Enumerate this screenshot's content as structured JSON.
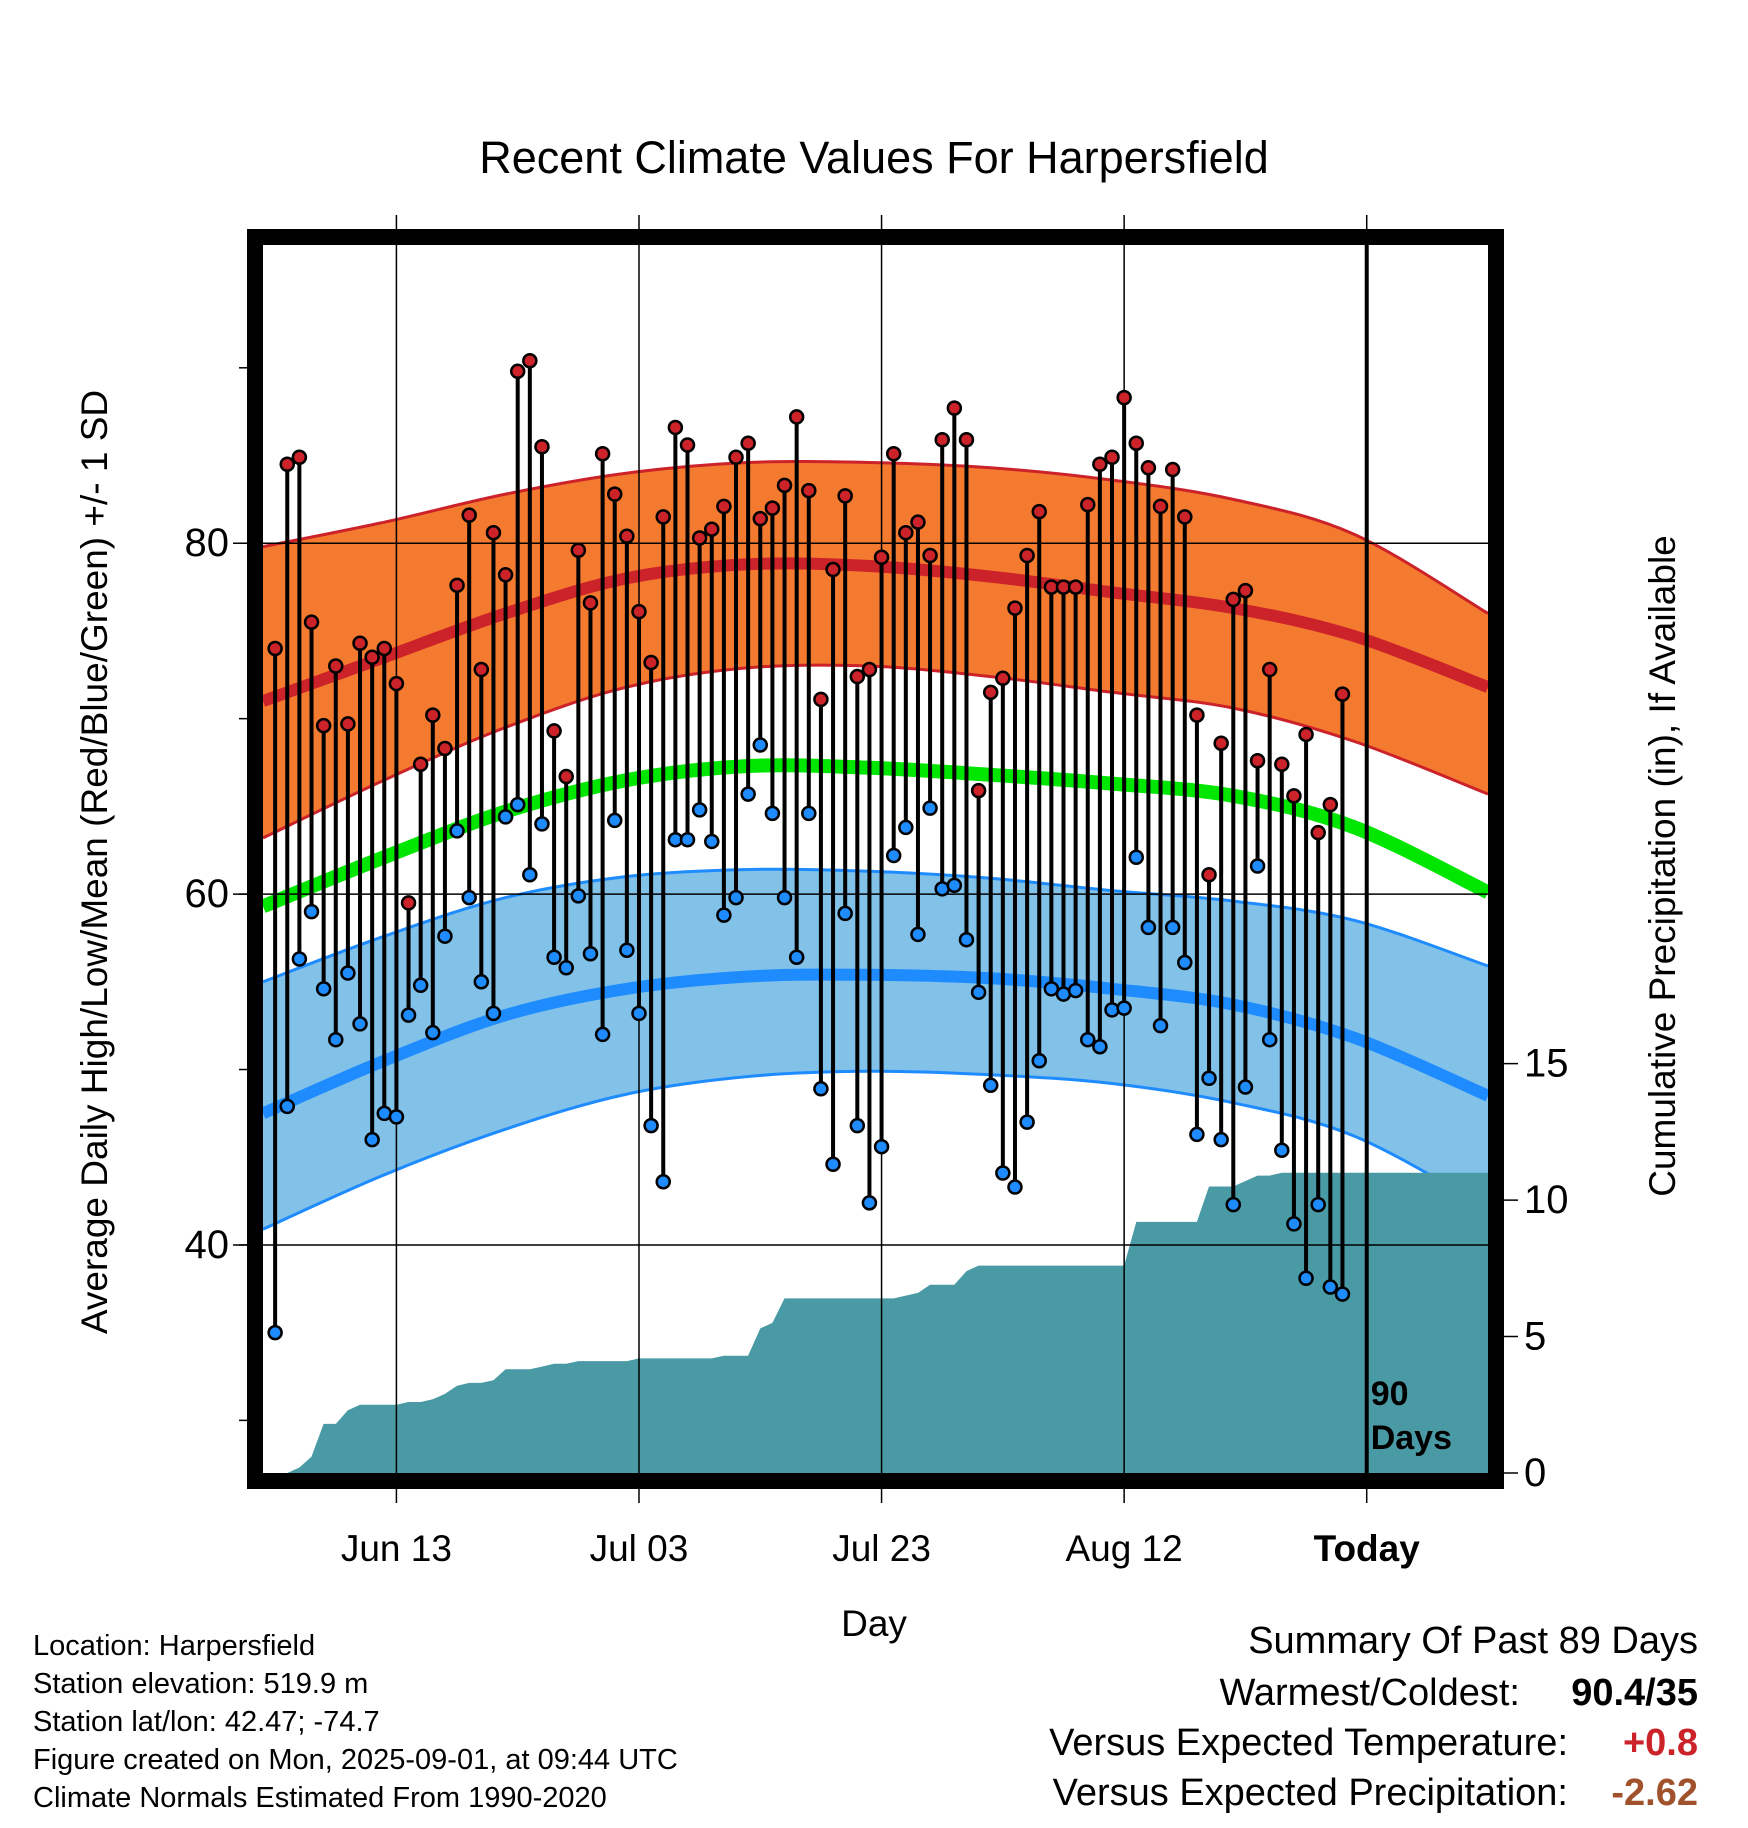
{
  "chart_data": {
    "type": "line",
    "title": "Recent Climate Values For Harpersfield",
    "xlabel": "Day",
    "ylabel": "Average Daily High/Low/Mean (Red/Blue/Green) +/- 1 SD",
    "y2label": "Cumulative Precipitation (in), If Available",
    "ylim": [
      27,
      97
    ],
    "y2lim": [
      0,
      45
    ],
    "yticks": [
      "80",
      "60",
      "40"
    ],
    "y2ticks": [
      "0",
      "5",
      "10",
      "15"
    ],
    "xticks": [
      "Jun 13",
      "Jul 03",
      "Jul 23",
      "Aug 12",
      "Today"
    ],
    "xtick_days": [
      11,
      31,
      51,
      71,
      91
    ],
    "xlim": [
      0,
      101
    ],
    "today_marker": {
      "day": 91,
      "label_line1": "90",
      "label_line2": "Days"
    },
    "grid": true,
    "colors": {
      "high_band": "#f47a30",
      "high_line": "#cc2229",
      "low_band": "#82c1e8",
      "low_line": "#1e8cff",
      "mean_line": "#00e600",
      "precip": "#4a9aa5",
      "high_point": "#cc2229",
      "low_point": "#1e8cff",
      "warm_value": "#cc2229",
      "precip_value": "#a0522d"
    },
    "normals": {
      "day": [
        0,
        10,
        20,
        30,
        40,
        50,
        60,
        70,
        80,
        90,
        101
      ],
      "high_hi": [
        79.8,
        81.2,
        82.8,
        84.0,
        84.6,
        84.6,
        84.3,
        83.6,
        82.5,
        80.5,
        76.0
      ],
      "high": [
        71.0,
        73.5,
        76.0,
        78.0,
        78.8,
        78.7,
        78.1,
        77.2,
        76.3,
        74.7,
        71.8
      ],
      "high_lo": [
        63.2,
        66.5,
        69.5,
        71.8,
        72.9,
        73.0,
        72.4,
        71.5,
        70.6,
        68.7,
        65.7
      ],
      "mean": [
        59.3,
        62.1,
        64.7,
        66.5,
        67.3,
        67.2,
        66.8,
        66.3,
        65.6,
        63.8,
        60.1
      ],
      "low_hi": [
        55.0,
        57.6,
        59.8,
        61.0,
        61.4,
        61.3,
        60.9,
        60.2,
        59.6,
        58.5,
        55.9
      ],
      "low": [
        47.5,
        50.5,
        53.1,
        54.6,
        55.3,
        55.4,
        55.2,
        54.6,
        53.7,
        51.8,
        48.5
      ],
      "low_lo": [
        40.9,
        44.0,
        46.6,
        48.6,
        49.6,
        49.9,
        49.7,
        49.2,
        48.1,
        46.2,
        42.1
      ]
    },
    "daily_high": [
      74.0,
      84.5,
      84.9,
      75.5,
      69.6,
      73.0,
      69.7,
      74.3,
      73.5,
      74.0,
      72.0,
      59.5,
      67.4,
      70.2,
      68.3,
      77.6,
      81.6,
      72.8,
      80.6,
      78.2,
      89.8,
      90.4,
      85.5,
      69.3,
      66.7,
      79.6,
      76.6,
      85.1,
      82.8,
      80.4,
      76.1,
      73.2,
      81.5,
      86.6,
      85.6,
      80.3,
      80.8,
      82.1,
      84.9,
      85.7,
      81.4,
      82.0,
      83.3,
      87.2,
      83.0,
      71.1,
      78.5,
      82.7,
      72.4,
      72.8,
      79.2,
      85.1,
      80.6,
      81.2,
      79.3,
      85.9,
      87.7,
      85.9,
      65.9,
      71.5,
      72.3,
      76.3,
      79.3,
      81.8,
      77.5,
      77.5,
      77.5,
      82.2,
      84.5,
      84.9,
      88.3,
      85.7,
      84.3,
      82.1,
      84.2,
      81.5,
      70.2,
      61.1,
      68.6,
      76.8,
      77.3,
      67.6,
      72.8,
      67.4,
      65.6,
      69.1,
      63.5,
      65.1,
      71.4
    ],
    "daily_low": [
      35.0,
      47.9,
      56.3,
      59.0,
      54.6,
      51.7,
      55.5,
      52.6,
      46.0,
      47.5,
      47.3,
      53.1,
      54.8,
      52.1,
      57.6,
      63.6,
      59.8,
      55.0,
      53.2,
      64.4,
      65.1,
      61.1,
      64.0,
      56.4,
      55.8,
      59.9,
      56.6,
      52.0,
      64.2,
      56.8,
      53.2,
      46.8,
      43.6,
      63.1,
      63.1,
      64.8,
      63.0,
      58.8,
      59.8,
      65.7,
      68.5,
      64.6,
      59.8,
      56.4,
      64.6,
      48.9,
      44.6,
      58.9,
      46.8,
      42.4,
      45.6,
      62.2,
      63.8,
      57.7,
      64.9,
      60.3,
      60.5,
      57.4,
      54.4,
      49.1,
      44.1,
      43.3,
      47.0,
      50.5,
      54.6,
      54.3,
      54.5,
      51.7,
      51.3,
      53.4,
      53.5,
      62.1,
      58.1,
      52.5,
      58.1,
      56.1,
      46.3,
      49.5,
      46.0,
      42.3,
      49.0,
      61.6,
      51.7,
      45.4,
      41.2,
      38.1,
      42.3,
      37.6,
      37.2
    ],
    "cumulative_precip": {
      "day": [
        1,
        2,
        3,
        4,
        5,
        6,
        7,
        8,
        9,
        10,
        11,
        12,
        13,
        14,
        15,
        16,
        17,
        18,
        19,
        20,
        21,
        22,
        23,
        24,
        25,
        26,
        27,
        28,
        29,
        30,
        31,
        32,
        33,
        34,
        35,
        36,
        37,
        38,
        39,
        40,
        41,
        42,
        43,
        44,
        45,
        46,
        47,
        48,
        49,
        50,
        51,
        52,
        53,
        54,
        55,
        56,
        57,
        58,
        59,
        60,
        61,
        62,
        63,
        64,
        65,
        66,
        67,
        68,
        69,
        70,
        71,
        72,
        73,
        74,
        75,
        76,
        77,
        78,
        79,
        80,
        81,
        82,
        83,
        84,
        85,
        86,
        87,
        88,
        89,
        90,
        91,
        101
      ],
      "value": [
        0.0,
        0.0,
        0.2,
        0.6,
        1.8,
        1.8,
        2.3,
        2.5,
        2.5,
        2.5,
        2.5,
        2.6,
        2.6,
        2.7,
        2.9,
        3.2,
        3.3,
        3.3,
        3.4,
        3.8,
        3.8,
        3.8,
        3.9,
        4.0,
        4.0,
        4.1,
        4.1,
        4.1,
        4.1,
        4.1,
        4.2,
        4.2,
        4.2,
        4.2,
        4.2,
        4.2,
        4.2,
        4.3,
        4.3,
        4.3,
        5.3,
        5.5,
        6.4,
        6.4,
        6.4,
        6.4,
        6.4,
        6.4,
        6.4,
        6.4,
        6.4,
        6.4,
        6.5,
        6.6,
        6.9,
        6.9,
        6.9,
        7.4,
        7.6,
        7.6,
        7.6,
        7.6,
        7.6,
        7.6,
        7.6,
        7.6,
        7.6,
        7.6,
        7.6,
        7.6,
        7.6,
        9.2,
        9.2,
        9.2,
        9.2,
        9.2,
        9.2,
        10.5,
        10.5,
        10.5,
        10.7,
        10.9,
        10.9,
        11.0,
        11.0,
        11.0,
        11.0,
        11.0,
        11.0,
        11.0,
        11.0,
        11.0
      ]
    }
  },
  "footer": {
    "location": "Location: Harpersfield",
    "elevation": "Station elevation: 519.9 m",
    "latlon": "Station lat/lon: 42.47; -74.7",
    "created": "Figure created on Mon, 2025-09-01, at 09:44 UTC",
    "normals": "Climate Normals Estimated From 1990-2020"
  },
  "summary": {
    "title": "Summary Of Past 89 Days",
    "warmest_label": "Warmest/Coldest:",
    "warmest_value": "90.4/35",
    "temp_label": "Versus Expected Temperature:",
    "temp_value": "+0.8",
    "precip_label": "Versus Expected Precipitation:",
    "precip_value": "-2.62"
  }
}
